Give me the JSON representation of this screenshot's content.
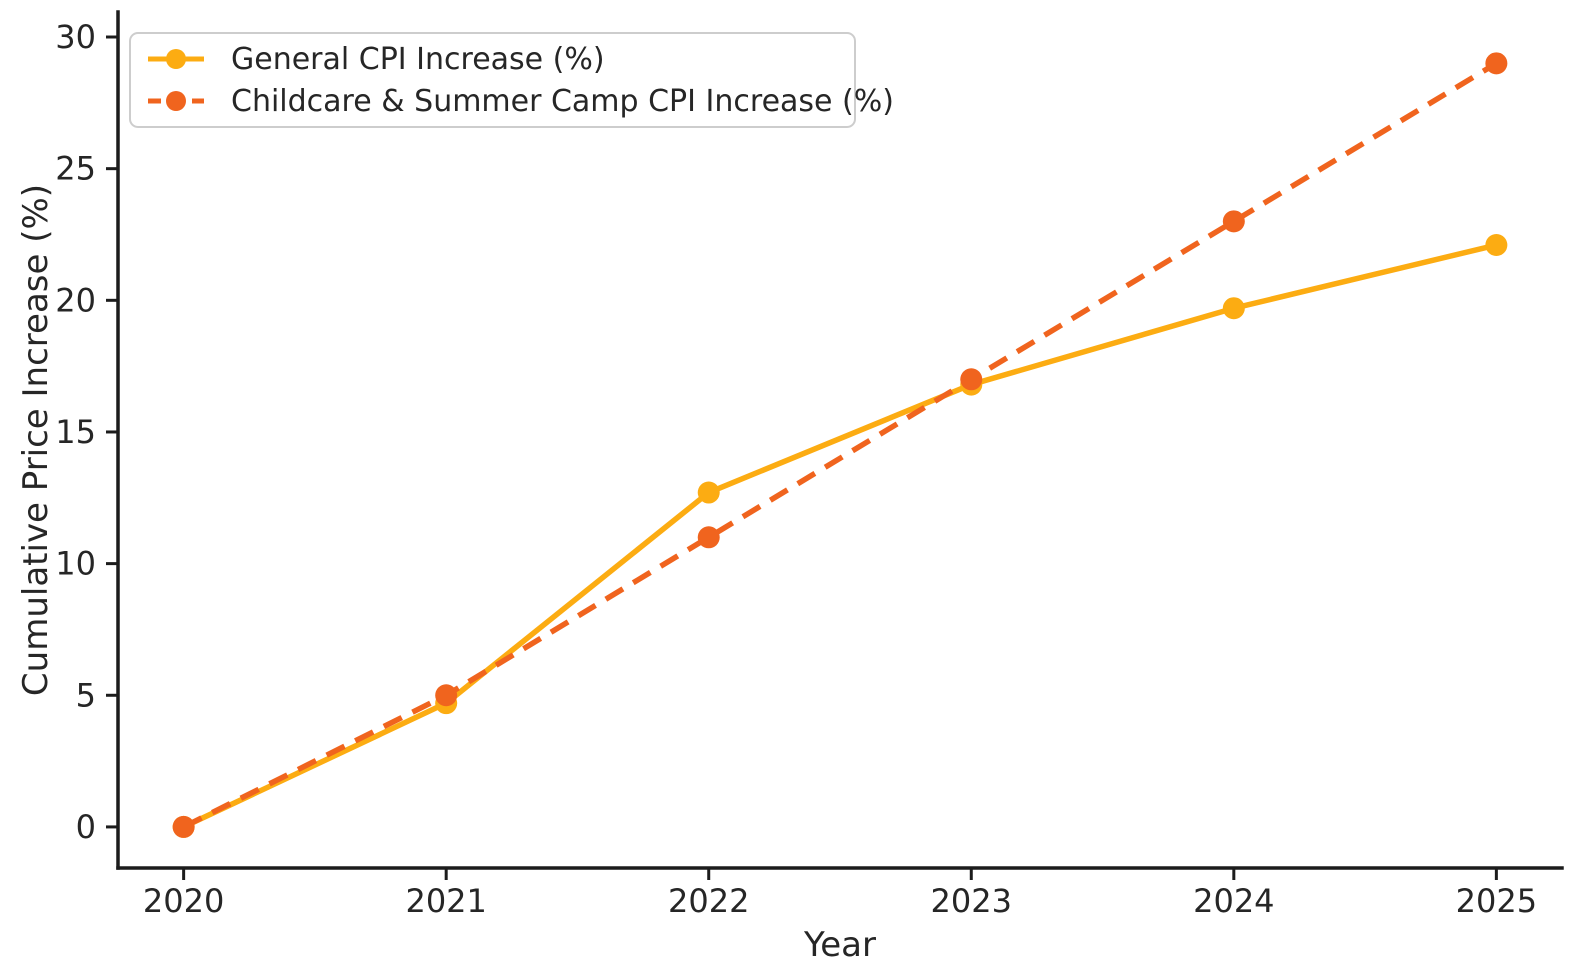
{
  "figure": {
    "background": "#ffffff",
    "text_color": "#262626",
    "axis_color": "#1c1c1c",
    "legend_border_color": "#cdcdcd"
  },
  "chart_data": {
    "type": "line",
    "title": "",
    "xlabel": "Year",
    "ylabel": "Cumulative Price Increase (%)",
    "x": [
      2020,
      2021,
      2022,
      2023,
      2024,
      2025
    ],
    "series": [
      {
        "name": "General CPI Increase (%)",
        "values": [
          0,
          4.7,
          12.7,
          16.8,
          19.7,
          22.1
        ],
        "color": "#FCAC12",
        "line_style": "solid",
        "marker": "circle"
      },
      {
        "name": "Childcare & Summer Camp CPI Increase (%)",
        "values": [
          0,
          5.0,
          11.0,
          17.0,
          23.0,
          29.0
        ],
        "color": "#F0641E",
        "line_style": "dashed",
        "marker": "circle"
      }
    ],
    "xticks": [
      "2020",
      "2021",
      "2022",
      "2023",
      "2024",
      "2025"
    ],
    "xtick_values": [
      2020,
      2021,
      2022,
      2023,
      2024,
      2025
    ],
    "yticks": [
      "0",
      "5",
      "10",
      "15",
      "20",
      "25",
      "30"
    ],
    "ytick_values": [
      0,
      5,
      10,
      15,
      20,
      25,
      30
    ],
    "xlim": [
      2019.75,
      2025.25
    ],
    "ylim": [
      -1.56,
      30.95
    ],
    "grid": false,
    "legend_position": "upper-left"
  }
}
